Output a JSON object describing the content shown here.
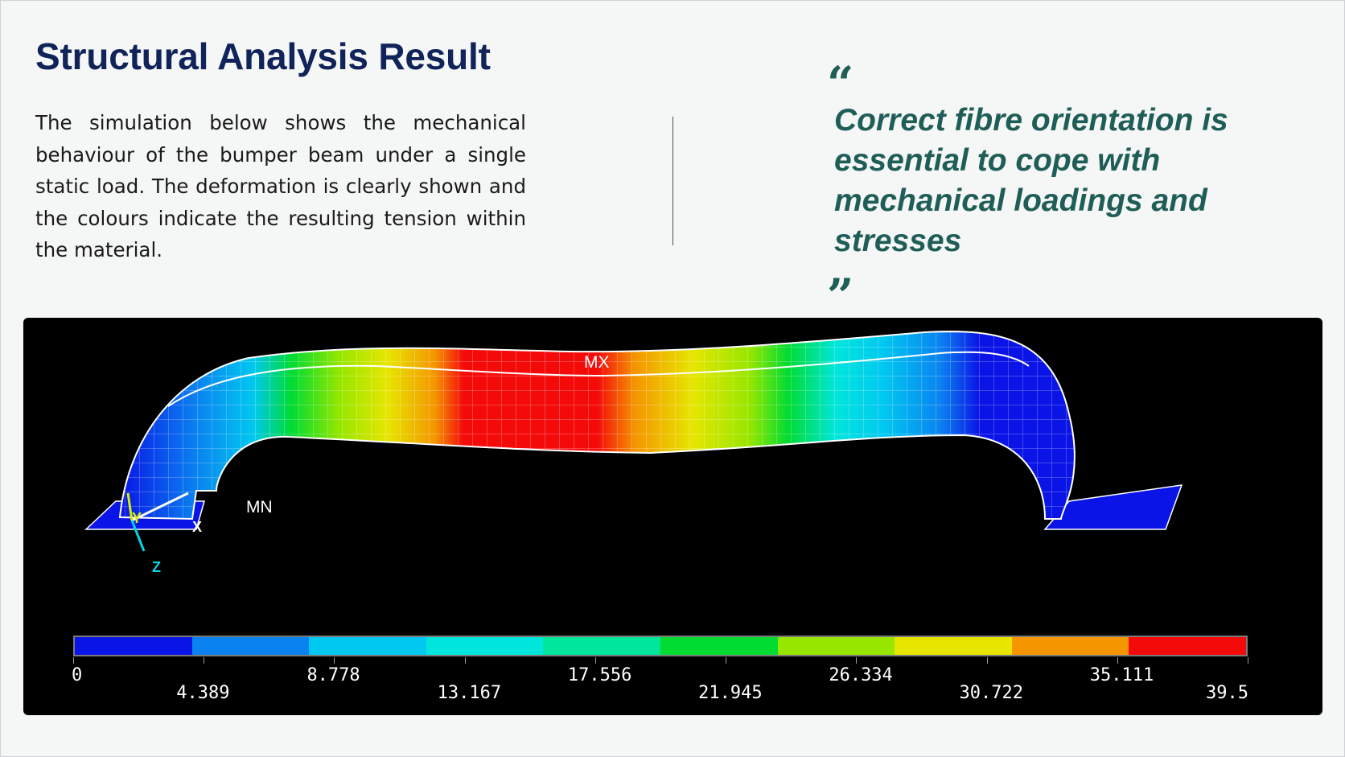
{
  "heading": "Structural Analysis Result",
  "description": "The simulation below shows the mechanical behaviour of the bumper beam under a single static load. The deformation is clearly shown and the colours indicate the resulting tension within the material.",
  "quote": {
    "open_mark": "“",
    "text": "Correct fibre orientation is essential to cope with mechanical loadings and stresses",
    "close_mark": "”"
  },
  "simulation": {
    "max_label": "MX",
    "min_label": "MN",
    "axes": {
      "x": "X",
      "y": "Y",
      "z": "Z"
    },
    "legend": {
      "colors": [
        "#0a14e6",
        "#0a82f0",
        "#00c8f0",
        "#00e6dc",
        "#00e69a",
        "#00dc32",
        "#96e600",
        "#e6e600",
        "#f59600",
        "#f50a0a"
      ],
      "ticks": [
        "0",
        "4.389",
        "8.778",
        "13.167",
        "17.556",
        "21.945",
        "26.334",
        "30.722",
        "35.111",
        "39.5"
      ]
    }
  },
  "colors": {
    "title": "#11245a",
    "quote": "#1f5d57",
    "panel_background": "#000000"
  }
}
